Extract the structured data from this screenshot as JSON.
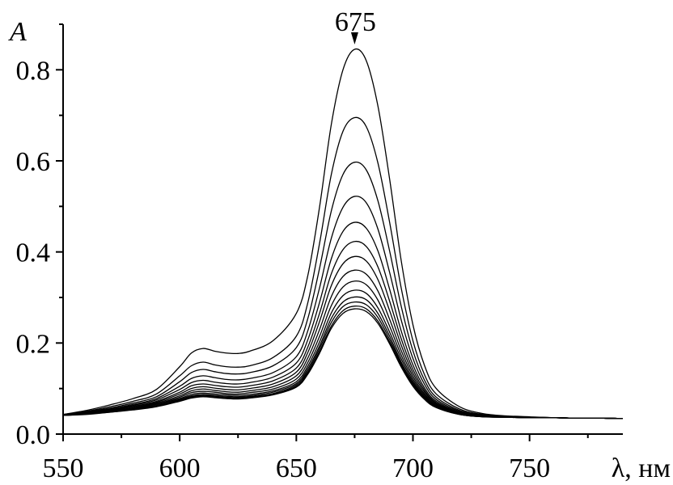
{
  "chart_data": {
    "type": "line",
    "title": "",
    "xlabel": "λ, нм",
    "ylabel": "A",
    "xlim": [
      550,
      790
    ],
    "ylim": [
      0.0,
      0.9
    ],
    "x_ticks": [
      550,
      600,
      650,
      700,
      750
    ],
    "y_ticks": [
      0.0,
      0.2,
      0.4,
      0.6,
      0.8
    ],
    "x_tick_labels": [
      "550",
      "600",
      "650",
      "700",
      "750"
    ],
    "y_tick_labels": [
      "0.0",
      "0.2",
      "0.4",
      "0.6",
      "0.8"
    ],
    "grid": false,
    "legend": "none",
    "color": "#000000",
    "annotations": [
      {
        "text": "675",
        "x": 675,
        "y": 0.845,
        "arrow": true
      }
    ],
    "x": [
      550,
      560,
      570,
      580,
      590,
      600,
      605,
      610,
      615,
      620,
      625,
      630,
      640,
      650,
      655,
      660,
      665,
      670,
      675,
      680,
      685,
      690,
      695,
      700,
      705,
      710,
      720,
      730,
      740,
      750,
      760,
      770,
      780,
      790
    ],
    "series": [
      {
        "values": [
          0.043,
          0.052,
          0.064,
          0.078,
          0.098,
          0.148,
          0.178,
          0.188,
          0.182,
          0.178,
          0.177,
          0.182,
          0.205,
          0.265,
          0.35,
          0.5,
          0.68,
          0.8,
          0.845,
          0.82,
          0.72,
          0.56,
          0.38,
          0.24,
          0.15,
          0.1,
          0.06,
          0.045,
          0.04,
          0.038,
          0.036,
          0.035,
          0.035,
          0.034
        ]
      },
      {
        "values": [
          0.043,
          0.05,
          0.06,
          0.072,
          0.088,
          0.128,
          0.15,
          0.158,
          0.152,
          0.148,
          0.147,
          0.15,
          0.168,
          0.215,
          0.29,
          0.42,
          0.57,
          0.665,
          0.695,
          0.675,
          0.595,
          0.465,
          0.32,
          0.205,
          0.13,
          0.088,
          0.055,
          0.043,
          0.039,
          0.037,
          0.036,
          0.035,
          0.035,
          0.034
        ]
      },
      {
        "values": [
          0.042,
          0.049,
          0.057,
          0.068,
          0.082,
          0.115,
          0.135,
          0.142,
          0.137,
          0.133,
          0.132,
          0.135,
          0.15,
          0.19,
          0.255,
          0.365,
          0.49,
          0.57,
          0.597,
          0.58,
          0.512,
          0.402,
          0.28,
          0.183,
          0.118,
          0.081,
          0.052,
          0.042,
          0.039,
          0.037,
          0.036,
          0.035,
          0.035,
          0.034
        ]
      },
      {
        "values": [
          0.042,
          0.048,
          0.055,
          0.065,
          0.078,
          0.105,
          0.122,
          0.128,
          0.124,
          0.12,
          0.119,
          0.122,
          0.135,
          0.17,
          0.228,
          0.322,
          0.43,
          0.498,
          0.522,
          0.508,
          0.45,
          0.355,
          0.25,
          0.166,
          0.109,
          0.076,
          0.05,
          0.041,
          0.038,
          0.037,
          0.036,
          0.035,
          0.035,
          0.034
        ]
      },
      {
        "values": [
          0.042,
          0.047,
          0.054,
          0.063,
          0.075,
          0.098,
          0.113,
          0.118,
          0.114,
          0.111,
          0.11,
          0.113,
          0.125,
          0.156,
          0.208,
          0.29,
          0.385,
          0.445,
          0.465,
          0.452,
          0.402,
          0.318,
          0.226,
          0.152,
          0.101,
          0.072,
          0.048,
          0.04,
          0.038,
          0.037,
          0.036,
          0.035,
          0.035,
          0.034
        ]
      },
      {
        "values": [
          0.042,
          0.047,
          0.053,
          0.061,
          0.072,
          0.092,
          0.106,
          0.11,
          0.107,
          0.104,
          0.103,
          0.106,
          0.117,
          0.145,
          0.192,
          0.266,
          0.352,
          0.405,
          0.423,
          0.412,
          0.367,
          0.292,
          0.209,
          0.142,
          0.096,
          0.069,
          0.047,
          0.04,
          0.038,
          0.037,
          0.036,
          0.035,
          0.035,
          0.034
        ]
      },
      {
        "values": [
          0.042,
          0.046,
          0.052,
          0.06,
          0.07,
          0.088,
          0.1,
          0.104,
          0.101,
          0.098,
          0.097,
          0.1,
          0.11,
          0.136,
          0.18,
          0.248,
          0.326,
          0.374,
          0.39,
          0.38,
          0.339,
          0.271,
          0.195,
          0.134,
          0.092,
          0.067,
          0.046,
          0.039,
          0.037,
          0.036,
          0.036,
          0.035,
          0.035,
          0.034
        ]
      },
      {
        "values": [
          0.042,
          0.046,
          0.051,
          0.058,
          0.068,
          0.084,
          0.095,
          0.099,
          0.096,
          0.093,
          0.092,
          0.095,
          0.104,
          0.128,
          0.168,
          0.23,
          0.302,
          0.346,
          0.36,
          0.351,
          0.314,
          0.252,
          0.183,
          0.127,
          0.088,
          0.065,
          0.045,
          0.039,
          0.037,
          0.036,
          0.036,
          0.035,
          0.035,
          0.034
        ]
      },
      {
        "values": [
          0.041,
          0.045,
          0.05,
          0.057,
          0.066,
          0.081,
          0.091,
          0.094,
          0.092,
          0.089,
          0.088,
          0.091,
          0.099,
          0.121,
          0.158,
          0.215,
          0.282,
          0.323,
          0.336,
          0.328,
          0.294,
          0.237,
          0.173,
          0.121,
          0.085,
          0.063,
          0.045,
          0.039,
          0.037,
          0.036,
          0.036,
          0.035,
          0.035,
          0.034
        ]
      },
      {
        "values": [
          0.041,
          0.045,
          0.05,
          0.056,
          0.065,
          0.078,
          0.087,
          0.09,
          0.088,
          0.086,
          0.085,
          0.087,
          0.095,
          0.115,
          0.15,
          0.203,
          0.266,
          0.304,
          0.316,
          0.309,
          0.277,
          0.224,
          0.165,
          0.116,
          0.082,
          0.062,
          0.044,
          0.039,
          0.037,
          0.036,
          0.036,
          0.035,
          0.035,
          0.034
        ]
      },
      {
        "values": [
          0.041,
          0.044,
          0.049,
          0.055,
          0.063,
          0.076,
          0.084,
          0.087,
          0.085,
          0.083,
          0.082,
          0.084,
          0.092,
          0.111,
          0.144,
          0.194,
          0.254,
          0.29,
          0.301,
          0.295,
          0.265,
          0.215,
          0.158,
          0.112,
          0.08,
          0.061,
          0.044,
          0.038,
          0.037,
          0.036,
          0.036,
          0.035,
          0.035,
          0.034
        ]
      },
      {
        "values": [
          0.041,
          0.044,
          0.049,
          0.054,
          0.062,
          0.074,
          0.082,
          0.085,
          0.083,
          0.081,
          0.08,
          0.082,
          0.089,
          0.108,
          0.139,
          0.188,
          0.245,
          0.28,
          0.29,
          0.284,
          0.256,
          0.208,
          0.154,
          0.11,
          0.079,
          0.06,
          0.043,
          0.038,
          0.037,
          0.036,
          0.036,
          0.035,
          0.035,
          0.034
        ]
      },
      {
        "values": [
          0.041,
          0.044,
          0.048,
          0.054,
          0.061,
          0.073,
          0.08,
          0.083,
          0.081,
          0.079,
          0.078,
          0.08,
          0.087,
          0.105,
          0.135,
          0.182,
          0.237,
          0.271,
          0.281,
          0.275,
          0.248,
          0.202,
          0.15,
          0.107,
          0.077,
          0.059,
          0.043,
          0.038,
          0.037,
          0.036,
          0.036,
          0.035,
          0.035,
          0.034
        ]
      },
      {
        "values": [
          0.041,
          0.043,
          0.048,
          0.053,
          0.06,
          0.072,
          0.079,
          0.082,
          0.08,
          0.078,
          0.077,
          0.079,
          0.086,
          0.103,
          0.132,
          0.178,
          0.232,
          0.265,
          0.275,
          0.269,
          0.243,
          0.198,
          0.147,
          0.105,
          0.076,
          0.058,
          0.043,
          0.038,
          0.037,
          0.036,
          0.036,
          0.035,
          0.035,
          0.034
        ]
      }
    ]
  }
}
